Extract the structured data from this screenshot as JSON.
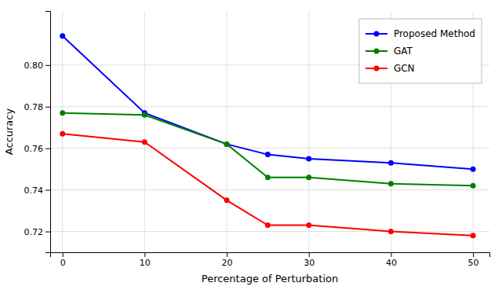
{
  "chart_data": {
    "type": "line",
    "xlabel": "Percentage of Perturbation",
    "ylabel": "Accuracy",
    "x": [
      0,
      10,
      20,
      25,
      30,
      40,
      50
    ],
    "series": [
      {
        "name": "Proposed Method",
        "color": "#0000ff",
        "marker": "circle",
        "values": [
          0.814,
          0.777,
          0.762,
          0.757,
          0.755,
          0.753,
          0.75
        ]
      },
      {
        "name": "GAT",
        "color": "#008000",
        "marker": "circle",
        "values": [
          0.777,
          0.776,
          0.762,
          0.746,
          0.746,
          0.743,
          0.742
        ]
      },
      {
        "name": "GCN",
        "color": "#ff0000",
        "marker": "circle",
        "values": [
          0.767,
          0.763,
          0.735,
          0.723,
          0.723,
          0.72,
          0.718
        ]
      }
    ],
    "xlim": [
      -1.5,
      52
    ],
    "ylim": [
      0.71,
      0.826
    ],
    "xticks": [
      0,
      10,
      20,
      30,
      40,
      50
    ],
    "yticks": [
      0.72,
      0.74,
      0.76,
      0.78,
      {
        "value": 0.8,
        "label": "0.80"
      }
    ],
    "grid": true,
    "legend": "upper right"
  }
}
